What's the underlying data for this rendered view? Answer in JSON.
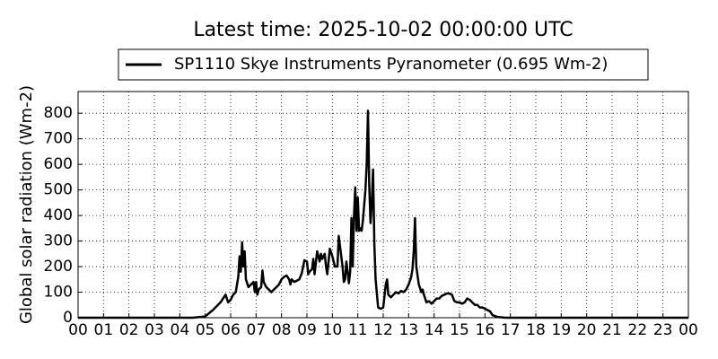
{
  "chart_data": {
    "type": "line",
    "title": "Latest time: 2025-10-02 00:00:00 UTC",
    "y_label": "Global solar radiation (Wm-2)",
    "grid": true,
    "legend": "top",
    "x": [
      0,
      4.5,
      5.0,
      5.3,
      5.6,
      5.8,
      5.9,
      6.0,
      6.1,
      6.2,
      6.3,
      6.35,
      6.4,
      6.45,
      6.5,
      6.55,
      6.6,
      6.7,
      6.8,
      6.9,
      6.95,
      7.0,
      7.05,
      7.1,
      7.2,
      7.25,
      7.3,
      7.4,
      7.5,
      7.6,
      7.7,
      7.8,
      7.9,
      8.0,
      8.1,
      8.2,
      8.3,
      8.35,
      8.4,
      8.5,
      8.6,
      8.7,
      8.8,
      8.9,
      9.0,
      9.05,
      9.1,
      9.2,
      9.25,
      9.3,
      9.4,
      9.5,
      9.55,
      9.6,
      9.7,
      9.75,
      9.8,
      9.9,
      10.0,
      10.1,
      10.2,
      10.25,
      10.3,
      10.4,
      10.45,
      10.5,
      10.55,
      10.6,
      10.65,
      10.7,
      10.75,
      10.8,
      10.85,
      10.9,
      10.95,
      11.0,
      11.05,
      11.1,
      11.15,
      11.2,
      11.3,
      11.35,
      11.4,
      11.45,
      11.5,
      11.55,
      11.6,
      11.65,
      11.7,
      11.8,
      11.9,
      12.0,
      12.1,
      12.15,
      12.2,
      12.3,
      12.4,
      12.5,
      12.6,
      12.7,
      12.8,
      12.9,
      13.0,
      13.1,
      13.15,
      13.2,
      13.25,
      13.3,
      13.4,
      13.5,
      13.55,
      13.6,
      13.7,
      13.8,
      13.9,
      14.0,
      14.1,
      14.2,
      14.3,
      14.4,
      14.5,
      14.6,
      14.7,
      14.8,
      14.9,
      15.0,
      15.1,
      15.2,
      15.3,
      15.4,
      15.5,
      15.6,
      15.7,
      15.8,
      15.9,
      16.0,
      16.1,
      16.2,
      16.3,
      16.5,
      16.8,
      24
    ],
    "series": [
      {
        "name": "SP1110 Skye Instruments Pyranometer (0.695 Wm-2)",
        "color": "#000000",
        "values": [
          0,
          0,
          5,
          30,
          60,
          90,
          60,
          70,
          90,
          100,
          160,
          240,
          180,
          295,
          200,
          260,
          150,
          120,
          130,
          140,
          100,
          140,
          90,
          110,
          120,
          185,
          140,
          120,
          110,
          100,
          110,
          120,
          130,
          150,
          160,
          165,
          150,
          130,
          150,
          140,
          145,
          150,
          175,
          225,
          220,
          170,
          180,
          190,
          230,
          170,
          260,
          220,
          250,
          230,
          250,
          200,
          170,
          270,
          240,
          200,
          200,
          320,
          280,
          200,
          140,
          150,
          220,
          180,
          135,
          180,
          390,
          200,
          400,
          510,
          340,
          470,
          340,
          350,
          340,
          380,
          500,
          600,
          810,
          520,
          370,
          450,
          580,
          290,
          150,
          40,
          35,
          40,
          130,
          150,
          90,
          80,
          90,
          100,
          95,
          105,
          100,
          110,
          130,
          160,
          190,
          260,
          390,
          200,
          130,
          100,
          110,
          90,
          60,
          65,
          55,
          65,
          75,
          75,
          85,
          90,
          95,
          95,
          90,
          65,
          60,
          60,
          55,
          60,
          75,
          70,
          60,
          50,
          50,
          40,
          40,
          35,
          30,
          25,
          10,
          3,
          0,
          0
        ]
      }
    ],
    "xlim": [
      0,
      24
    ],
    "xticks": [
      {
        "value": 0,
        "label": "00"
      },
      {
        "value": 1,
        "label": "01"
      },
      {
        "value": 2,
        "label": "02"
      },
      {
        "value": 3,
        "label": "03"
      },
      {
        "value": 4,
        "label": "04"
      },
      {
        "value": 5,
        "label": "05"
      },
      {
        "value": 6,
        "label": "06"
      },
      {
        "value": 7,
        "label": "07"
      },
      {
        "value": 8,
        "label": "08"
      },
      {
        "value": 9,
        "label": "09"
      },
      {
        "value": 10,
        "label": "10"
      },
      {
        "value": 11,
        "label": "11"
      },
      {
        "value": 12,
        "label": "12"
      },
      {
        "value": 13,
        "label": "13"
      },
      {
        "value": 14,
        "label": "14"
      },
      {
        "value": 15,
        "label": "15"
      },
      {
        "value": 16,
        "label": "16"
      },
      {
        "value": 17,
        "label": "17"
      },
      {
        "value": 18,
        "label": "18"
      },
      {
        "value": 19,
        "label": "19"
      },
      {
        "value": 20,
        "label": "20"
      },
      {
        "value": 21,
        "label": "21"
      },
      {
        "value": 22,
        "label": "22"
      },
      {
        "value": 23,
        "label": "23"
      },
      {
        "value": 24,
        "label": "00"
      }
    ],
    "ylim": [
      0,
      885
    ],
    "yticks": [
      0,
      100,
      200,
      300,
      400,
      500,
      600,
      700,
      800
    ]
  }
}
